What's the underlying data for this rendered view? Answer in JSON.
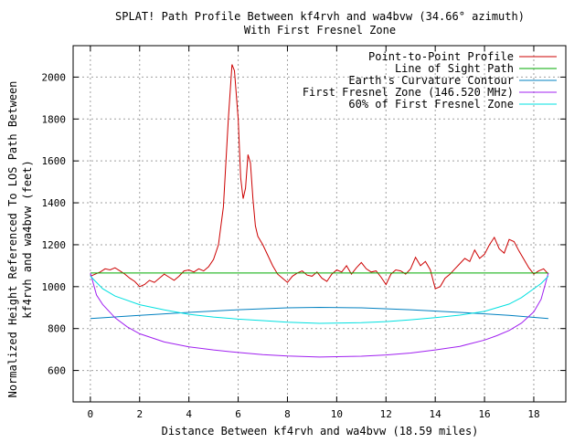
{
  "chart_data": {
    "type": "line",
    "title": "SPLAT! Path Profile Between kf4rvh and wa4bvw (34.66° azimuth)",
    "subtitle": "With First Fresnel Zone",
    "xlabel": "Distance Between kf4rvh and wa4bvw (18.59 miles)",
    "ylabel": "Normalized Height Referenced To LOS Path Between",
    "ylabel2": "kf4rvh and wa4bvw (feet)",
    "xlim": [
      -0.7,
      19.3
    ],
    "ylim": [
      450,
      2150
    ],
    "x_ticks": [
      0,
      2,
      4,
      6,
      8,
      10,
      12,
      14,
      16,
      18
    ],
    "y_ticks": [
      600,
      800,
      1000,
      1200,
      1400,
      1600,
      1800,
      2000
    ],
    "grid": true,
    "legend_position": "top-right",
    "series": [
      {
        "name": "Point-to-Point Profile",
        "color": "#cc0000",
        "x": [
          0,
          0.2,
          0.4,
          0.6,
          0.8,
          1.0,
          1.2,
          1.4,
          1.6,
          1.8,
          2.0,
          2.2,
          2.4,
          2.6,
          2.8,
          3.0,
          3.2,
          3.4,
          3.6,
          3.8,
          4.0,
          4.2,
          4.4,
          4.6,
          4.8,
          5.0,
          5.2,
          5.4,
          5.6,
          5.75,
          5.85,
          6.0,
          6.1,
          6.2,
          6.3,
          6.4,
          6.5,
          6.6,
          6.7,
          6.8,
          7.0,
          7.2,
          7.4,
          7.6,
          7.8,
          8.0,
          8.2,
          8.4,
          8.6,
          8.8,
          9.0,
          9.2,
          9.4,
          9.6,
          9.8,
          10.0,
          10.2,
          10.4,
          10.6,
          10.8,
          11.0,
          11.2,
          11.4,
          11.6,
          11.8,
          12.0,
          12.2,
          12.4,
          12.6,
          12.8,
          13.0,
          13.2,
          13.4,
          13.6,
          13.8,
          14.0,
          14.2,
          14.4,
          14.6,
          14.8,
          15.0,
          15.2,
          15.4,
          15.6,
          15.8,
          16.0,
          16.2,
          16.4,
          16.6,
          16.8,
          17.0,
          17.2,
          17.4,
          17.6,
          17.8,
          18.0,
          18.2,
          18.4,
          18.59
        ],
        "y": [
          1050,
          1060,
          1070,
          1085,
          1080,
          1090,
          1075,
          1060,
          1040,
          1025,
          1000,
          1010,
          1030,
          1020,
          1040,
          1060,
          1045,
          1030,
          1050,
          1075,
          1080,
          1070,
          1085,
          1075,
          1095,
          1130,
          1200,
          1380,
          1800,
          2060,
          2030,
          1800,
          1520,
          1420,
          1470,
          1630,
          1590,
          1420,
          1290,
          1240,
          1200,
          1150,
          1100,
          1060,
          1040,
          1020,
          1050,
          1065,
          1075,
          1055,
          1050,
          1070,
          1040,
          1025,
          1060,
          1080,
          1070,
          1100,
          1060,
          1090,
          1115,
          1085,
          1070,
          1075,
          1045,
          1010,
          1060,
          1080,
          1075,
          1060,
          1085,
          1140,
          1100,
          1120,
          1080,
          990,
          1000,
          1040,
          1060,
          1085,
          1110,
          1135,
          1120,
          1175,
          1135,
          1155,
          1200,
          1235,
          1180,
          1160,
          1225,
          1215,
          1170,
          1130,
          1090,
          1060,
          1075,
          1085,
          1060
        ]
      },
      {
        "name": "Line of Sight Path",
        "color": "#00aa00",
        "x": [
          0,
          18.59
        ],
        "y": [
          1065,
          1065
        ]
      },
      {
        "name": "Earth's Curvature Contour",
        "color": "#0080c0",
        "x": [
          0,
          2,
          4,
          6,
          8,
          9.3,
          11,
          13,
          15,
          17,
          18.59
        ],
        "y": [
          848,
          863,
          877,
          890,
          899,
          901,
          899,
          890,
          877,
          863,
          848
        ]
      },
      {
        "name": "First Fresnel Zone (146.520 MHz)",
        "color": "#a020f0",
        "x": [
          0,
          0.25,
          0.5,
          1,
          1.5,
          2,
          3,
          4,
          5,
          6,
          7,
          8,
          9.3,
          11,
          12,
          13,
          14,
          15,
          16,
          16.5,
          17,
          17.5,
          18,
          18.3,
          18.59
        ],
        "y": [
          1065,
          960,
          915,
          852,
          808,
          775,
          736,
          713,
          698,
          686,
          676,
          669,
          664,
          668,
          674,
          683,
          698,
          715,
          745,
          766,
          791,
          826,
          880,
          940,
          1065
        ]
      },
      {
        "name": "60% of First Fresnel Zone",
        "color": "#00e0e0",
        "x": [
          0,
          0.5,
          1,
          2,
          3,
          4,
          5,
          6,
          7,
          8,
          9.3,
          11,
          12,
          13,
          14,
          15,
          16,
          17,
          17.5,
          18,
          18.3,
          18.59
        ],
        "y": [
          1050,
          990,
          955,
          914,
          889,
          868,
          855,
          845,
          838,
          830,
          825,
          828,
          833,
          842,
          852,
          864,
          882,
          917,
          948,
          990,
          1015,
          1050
        ]
      }
    ]
  }
}
